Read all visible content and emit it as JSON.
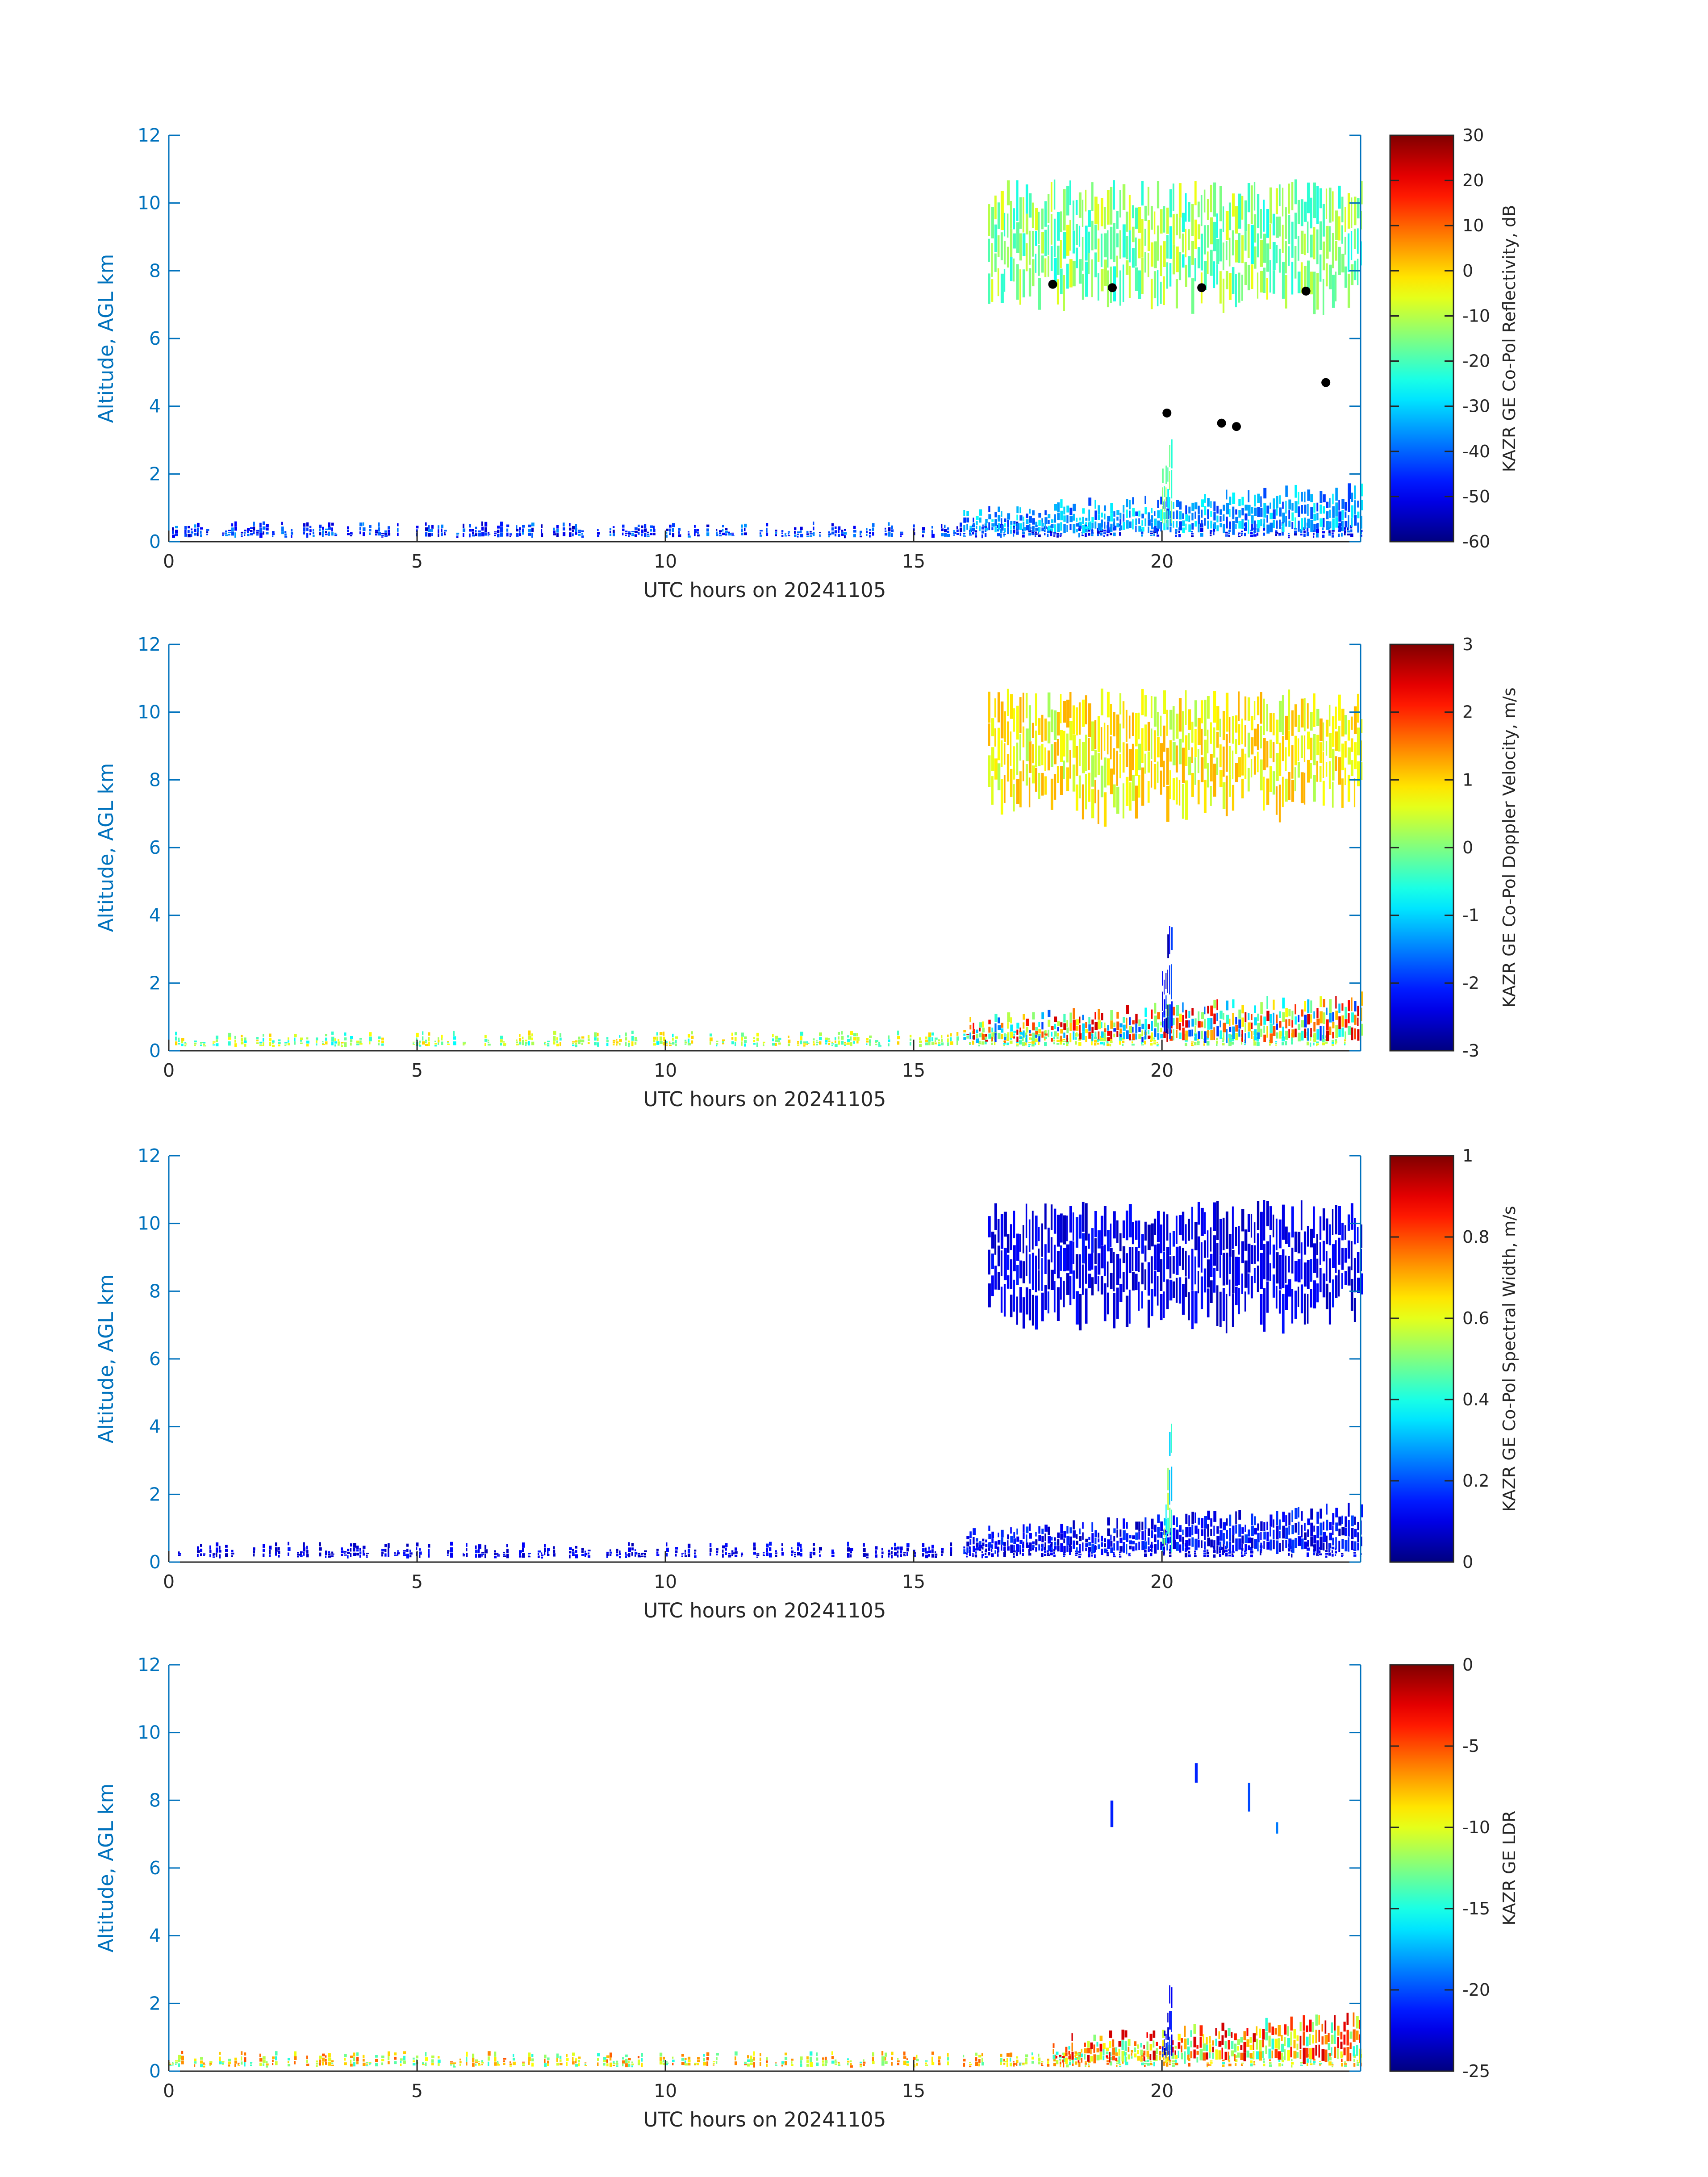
{
  "colors": {
    "axis_y": "#0072bd",
    "axis_x": "#262626",
    "colormap": "jet",
    "marker": "#000000"
  },
  "chart_data": [
    {
      "type": "heatmap",
      "title": "",
      "xlabel": "UTC hours on 20241105",
      "ylabel": "Altitude, AGL km",
      "xlim": [
        0,
        24
      ],
      "ylim": [
        0,
        12
      ],
      "xticks": [
        0,
        5,
        10,
        15,
        20
      ],
      "yticks": [
        0,
        2,
        4,
        6,
        8,
        10,
        12
      ],
      "colorbar": {
        "label": "KAZR GE Co-Pol Reflectivity, dB",
        "range": [
          -60,
          30
        ],
        "ticks": [
          30,
          20,
          10,
          0,
          -10,
          -20,
          -30,
          -40,
          -50,
          -60
        ]
      },
      "regions": [
        {
          "name": "cirrus-layer",
          "x_range": [
            16.5,
            24
          ],
          "altitude_km": [
            6.6,
            10.7
          ],
          "value_range": [
            -25,
            -5
          ],
          "typical": -15
        },
        {
          "name": "boundary-layer-clutter",
          "x_range": [
            0,
            24
          ],
          "altitude_km": [
            0.1,
            0.6
          ],
          "value_range": [
            -55,
            -35
          ],
          "typical": -45
        },
        {
          "name": "afternoon-low-cloud",
          "x_range": [
            16,
            24
          ],
          "altitude_km": [
            0.2,
            1.8
          ],
          "value_range": [
            -45,
            -25
          ],
          "typical": -35
        },
        {
          "name": "vertical-streak",
          "x_range": [
            20.0,
            20.2
          ],
          "altitude_km": [
            0.2,
            4.4
          ],
          "value_range": [
            -30,
            -10
          ],
          "typical": -20
        }
      ],
      "markers": [
        {
          "time_h": 17.8,
          "alt_km": 7.6
        },
        {
          "time_h": 19.0,
          "alt_km": 7.5
        },
        {
          "time_h": 20.8,
          "alt_km": 7.5
        },
        {
          "time_h": 22.9,
          "alt_km": 7.4
        },
        {
          "time_h": 20.1,
          "alt_km": 3.8
        },
        {
          "time_h": 21.2,
          "alt_km": 3.5
        },
        {
          "time_h": 21.5,
          "alt_km": 3.4
        },
        {
          "time_h": 23.3,
          "alt_km": 4.7
        }
      ]
    },
    {
      "type": "heatmap",
      "title": "",
      "xlabel": "UTC hours on 20241105",
      "ylabel": "Altitude, AGL km",
      "xlim": [
        0,
        24
      ],
      "ylim": [
        0,
        12
      ],
      "xticks": [
        0,
        5,
        10,
        15,
        20
      ],
      "yticks": [
        0,
        2,
        4,
        6,
        8,
        10,
        12
      ],
      "colorbar": {
        "label": "KAZR GE Co-Pol Doppler Velocity, m/s",
        "range": [
          -3,
          3
        ],
        "ticks": [
          3,
          2,
          1,
          0,
          -1,
          -2,
          -3
        ]
      },
      "regions": [
        {
          "name": "cirrus-layer",
          "x_range": [
            16.5,
            24
          ],
          "altitude_km": [
            6.6,
            10.7
          ],
          "value_range": [
            0,
            1.2
          ],
          "typical": 0.8
        },
        {
          "name": "boundary-layer-clutter",
          "x_range": [
            0,
            24
          ],
          "altitude_km": [
            0.1,
            0.6
          ],
          "value_range": [
            -1,
            1
          ],
          "typical": 0.2
        },
        {
          "name": "afternoon-low-cloud",
          "x_range": [
            16,
            24
          ],
          "altitude_km": [
            0.2,
            1.8
          ],
          "value_range": [
            -2.5,
            2.5
          ],
          "typical": 0.5
        },
        {
          "name": "vertical-streak",
          "x_range": [
            20.0,
            20.2
          ],
          "altitude_km": [
            0.2,
            4.4
          ],
          "value_range": [
            -2.8,
            -1.5
          ],
          "typical": -2.3
        }
      ]
    },
    {
      "type": "heatmap",
      "title": "",
      "xlabel": "UTC hours on 20241105",
      "ylabel": "Altitude, AGL km",
      "xlim": [
        0,
        24
      ],
      "ylim": [
        0,
        12
      ],
      "xticks": [
        0,
        5,
        10,
        15,
        20
      ],
      "yticks": [
        0,
        2,
        4,
        6,
        8,
        10,
        12
      ],
      "colorbar": {
        "label": "KAZR GE Co-Pol Spectral Width, m/s",
        "range": [
          0,
          1
        ],
        "ticks": [
          1,
          0.8,
          0.6,
          0.4,
          0.2,
          0
        ]
      },
      "regions": [
        {
          "name": "cirrus-layer",
          "x_range": [
            16.5,
            24
          ],
          "altitude_km": [
            6.6,
            10.7
          ],
          "value_range": [
            0.05,
            0.15
          ],
          "typical": 0.1
        },
        {
          "name": "boundary-layer-clutter",
          "x_range": [
            0,
            24
          ],
          "altitude_km": [
            0.1,
            0.6
          ],
          "value_range": [
            0.05,
            0.15
          ],
          "typical": 0.1
        },
        {
          "name": "afternoon-low-cloud",
          "x_range": [
            16,
            24
          ],
          "altitude_km": [
            0.2,
            1.8
          ],
          "value_range": [
            0.05,
            0.2
          ],
          "typical": 0.12
        },
        {
          "name": "vertical-streak",
          "x_range": [
            20.0,
            20.2
          ],
          "altitude_km": [
            0.2,
            4.4
          ],
          "value_range": [
            0.2,
            0.6
          ],
          "typical": 0.4
        }
      ]
    },
    {
      "type": "heatmap",
      "title": "",
      "xlabel": "UTC hours on 20241105",
      "ylabel": "Altitude, AGL km",
      "xlim": [
        0,
        24
      ],
      "ylim": [
        0,
        12
      ],
      "xticks": [
        0,
        5,
        10,
        15,
        20
      ],
      "yticks": [
        0,
        2,
        4,
        6,
        8,
        10,
        12
      ],
      "colorbar": {
        "label": "KAZR GE LDR",
        "range": [
          -25,
          0
        ],
        "ticks": [
          0,
          -5,
          -10,
          -15,
          -20,
          -25
        ]
      },
      "regions": [
        {
          "name": "sparse-upper-returns",
          "x_range": [
            18.9,
            22.6
          ],
          "altitude_km": [
            6.8,
            9.2
          ],
          "value_range": [
            -22,
            -18
          ],
          "typical": -20
        },
        {
          "name": "boundary-layer-clutter",
          "x_range": [
            0,
            24
          ],
          "altitude_km": [
            0.1,
            0.6
          ],
          "value_range": [
            -15,
            -5
          ],
          "typical": -10
        },
        {
          "name": "afternoon-low-cloud",
          "x_range": [
            17.8,
            24
          ],
          "altitude_km": [
            0.2,
            1.8
          ],
          "value_range": [
            -16,
            -2
          ],
          "typical": -8
        },
        {
          "name": "vertical-streak",
          "x_range": [
            20.0,
            20.2
          ],
          "altitude_km": [
            0.2,
            2.9
          ],
          "value_range": [
            -24,
            -20
          ],
          "typical": -22
        }
      ]
    }
  ]
}
